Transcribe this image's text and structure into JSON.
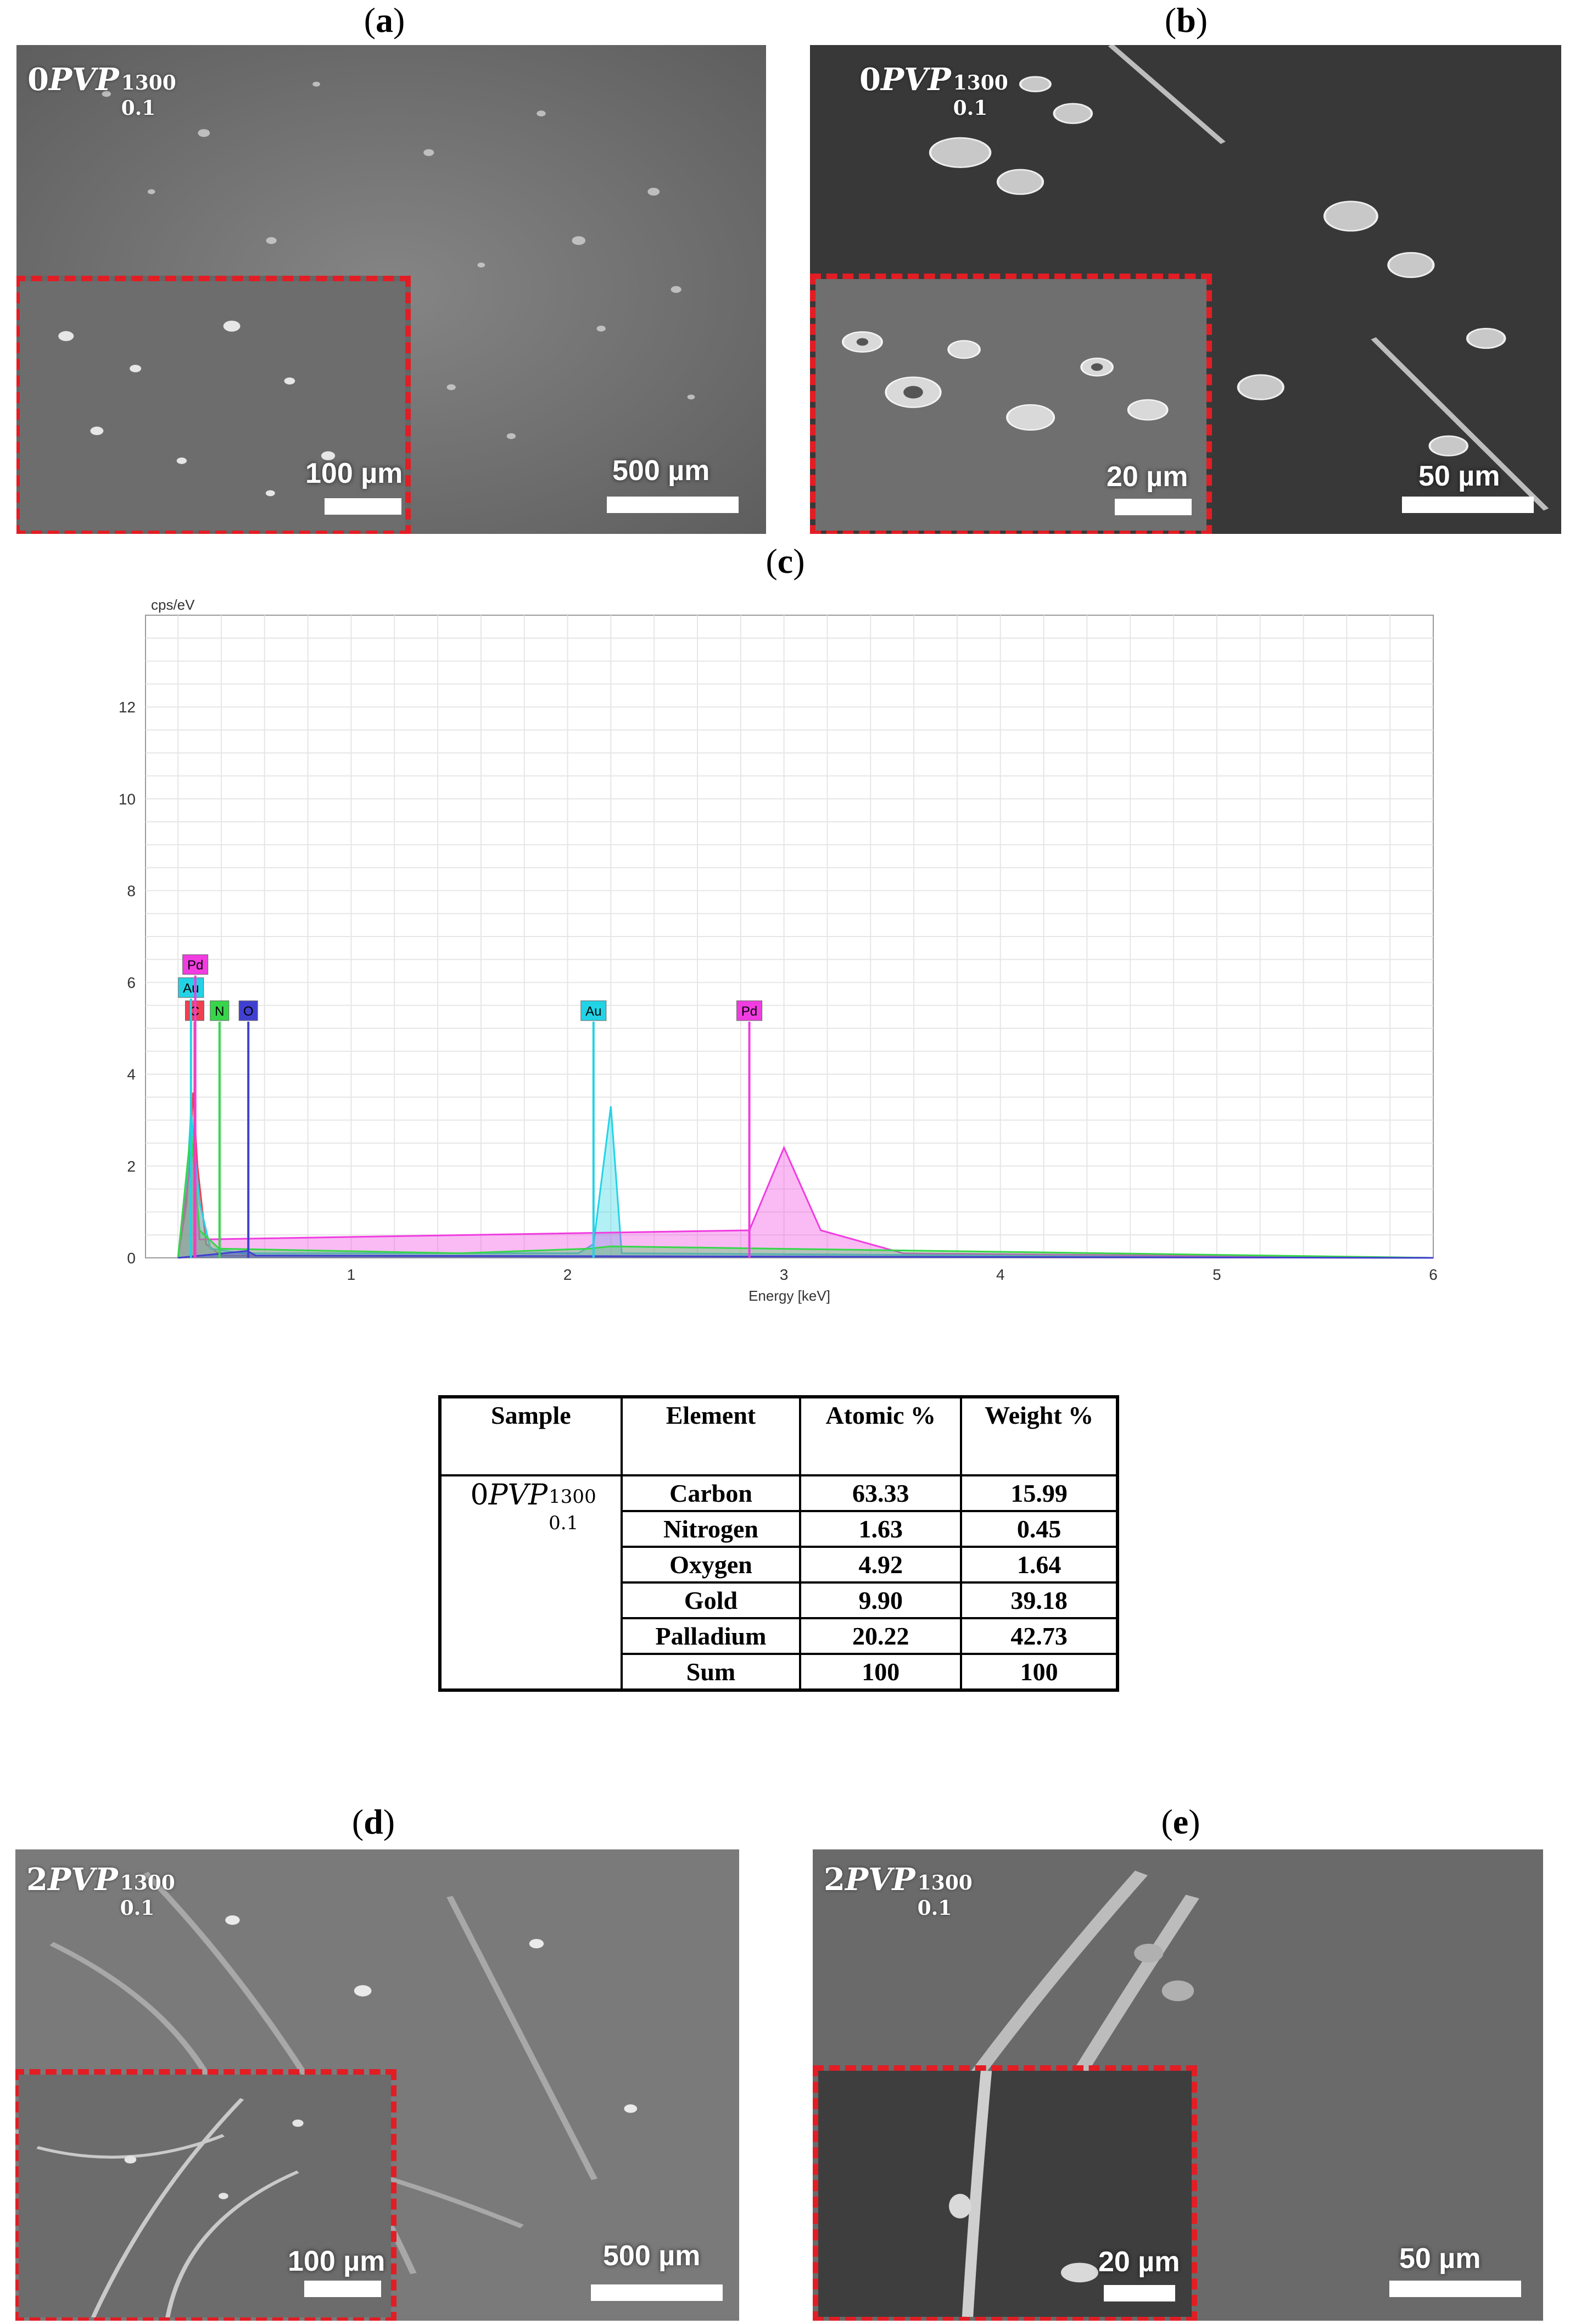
{
  "panels": {
    "a": {
      "label": "a",
      "sample": {
        "prefix": "0",
        "name": "PVP",
        "sup": "1300",
        "sub": "0.1"
      },
      "inset_scale": "100 µm",
      "main_scale": "500 µm"
    },
    "b": {
      "label": "b",
      "sample": {
        "prefix": "0",
        "name": "PVP",
        "sup": "1300",
        "sub": "0.1"
      },
      "inset_scale": "20 µm",
      "main_scale": "50 µm"
    },
    "c": {
      "label": "c"
    },
    "d": {
      "label": "d",
      "sample": {
        "prefix": "2",
        "name": "PVP",
        "sup": "1300",
        "sub": "0.1"
      },
      "inset_scale": "100 µm",
      "main_scale": "500 µm"
    },
    "e": {
      "label": "e",
      "sample": {
        "prefix": "2",
        "name": "PVP",
        "sup": "1300",
        "sub": "0.1"
      },
      "inset_scale": "20 µm",
      "main_scale": "50 µm"
    }
  },
  "chart_data": {
    "type": "line",
    "xlabel": "Energy [keV]",
    "ylabel": "cps/eV",
    "xlim": [
      0.05,
      6
    ],
    "ylim": [
      0,
      14
    ],
    "xticks": [
      1,
      2,
      3,
      4,
      5,
      6
    ],
    "yticks": [
      0,
      2,
      4,
      6,
      8,
      10,
      12
    ],
    "grid": true,
    "peak_markers": [
      {
        "label": "C",
        "energy": 0.277,
        "color": "#f0404f"
      },
      {
        "label": "Au",
        "energy": 0.26,
        "color": "#22d3e6"
      },
      {
        "label": "Pd",
        "energy": 0.28,
        "color": "#f03ce0"
      },
      {
        "label": "N",
        "energy": 0.392,
        "color": "#37d64a"
      },
      {
        "label": "O",
        "energy": 0.525,
        "color": "#4040d0"
      },
      {
        "label": "Au",
        "energy": 2.12,
        "color": "#22d3e6"
      },
      {
        "label": "Pd",
        "energy": 2.84,
        "color": "#f03ce0"
      }
    ],
    "series": [
      {
        "element": "C",
        "color": "#f0404f",
        "points": [
          [
            0.2,
            0
          ],
          [
            0.24,
            1.2
          ],
          [
            0.27,
            3.6
          ],
          [
            0.29,
            2.0
          ],
          [
            0.33,
            0.3
          ],
          [
            0.4,
            0.05
          ],
          [
            6,
            0
          ]
        ]
      },
      {
        "element": "Au",
        "color": "#22d3e6",
        "points": [
          [
            0.2,
            0
          ],
          [
            0.24,
            1.5
          ],
          [
            0.26,
            3.2
          ],
          [
            0.3,
            1.2
          ],
          [
            0.35,
            0.2
          ],
          [
            0.5,
            0.1
          ],
          [
            2.05,
            0.1
          ],
          [
            2.12,
            0.3
          ],
          [
            2.2,
            3.3
          ],
          [
            2.25,
            0.1
          ],
          [
            6,
            0
          ]
        ]
      },
      {
        "element": "Pd",
        "color": "#f03ce0",
        "points": [
          [
            0.2,
            0
          ],
          [
            0.27,
            2.5
          ],
          [
            0.3,
            0.4
          ],
          [
            2.84,
            0.6
          ],
          [
            3.0,
            2.4
          ],
          [
            3.17,
            0.6
          ],
          [
            3.55,
            0.1
          ],
          [
            6,
            0
          ]
        ]
      },
      {
        "element": "N",
        "color": "#37d64a",
        "points": [
          [
            0.2,
            0
          ],
          [
            0.26,
            2.8
          ],
          [
            0.3,
            0.6
          ],
          [
            0.39,
            0.2
          ],
          [
            1.5,
            0.1
          ],
          [
            2.1,
            0.2
          ],
          [
            2.2,
            0.25
          ],
          [
            6,
            0
          ]
        ]
      },
      {
        "element": "O",
        "color": "#4040d0",
        "points": [
          [
            0.2,
            0
          ],
          [
            0.52,
            0.15
          ],
          [
            0.56,
            0.05
          ],
          [
            6,
            0
          ]
        ]
      }
    ],
    "table": {
      "columns": [
        "Sample",
        "Element",
        "Atomic %",
        "Weight %"
      ],
      "sample": {
        "prefix": "0",
        "name": "PVP",
        "sup": "1300",
        "sub": "0.1"
      },
      "rows": [
        {
          "element": "Carbon",
          "atomic": "63.33",
          "weight": "15.99"
        },
        {
          "element": "Nitrogen",
          "atomic": "1.63",
          "weight": "0.45"
        },
        {
          "element": "Oxygen",
          "atomic": "4.92",
          "weight": "1.64"
        },
        {
          "element": "Gold",
          "atomic": "9.90",
          "weight": "39.18"
        },
        {
          "element": "Palladium",
          "atomic": "20.22",
          "weight": "42.73"
        },
        {
          "element": "Sum",
          "atomic": "100",
          "weight": "100"
        }
      ]
    }
  }
}
